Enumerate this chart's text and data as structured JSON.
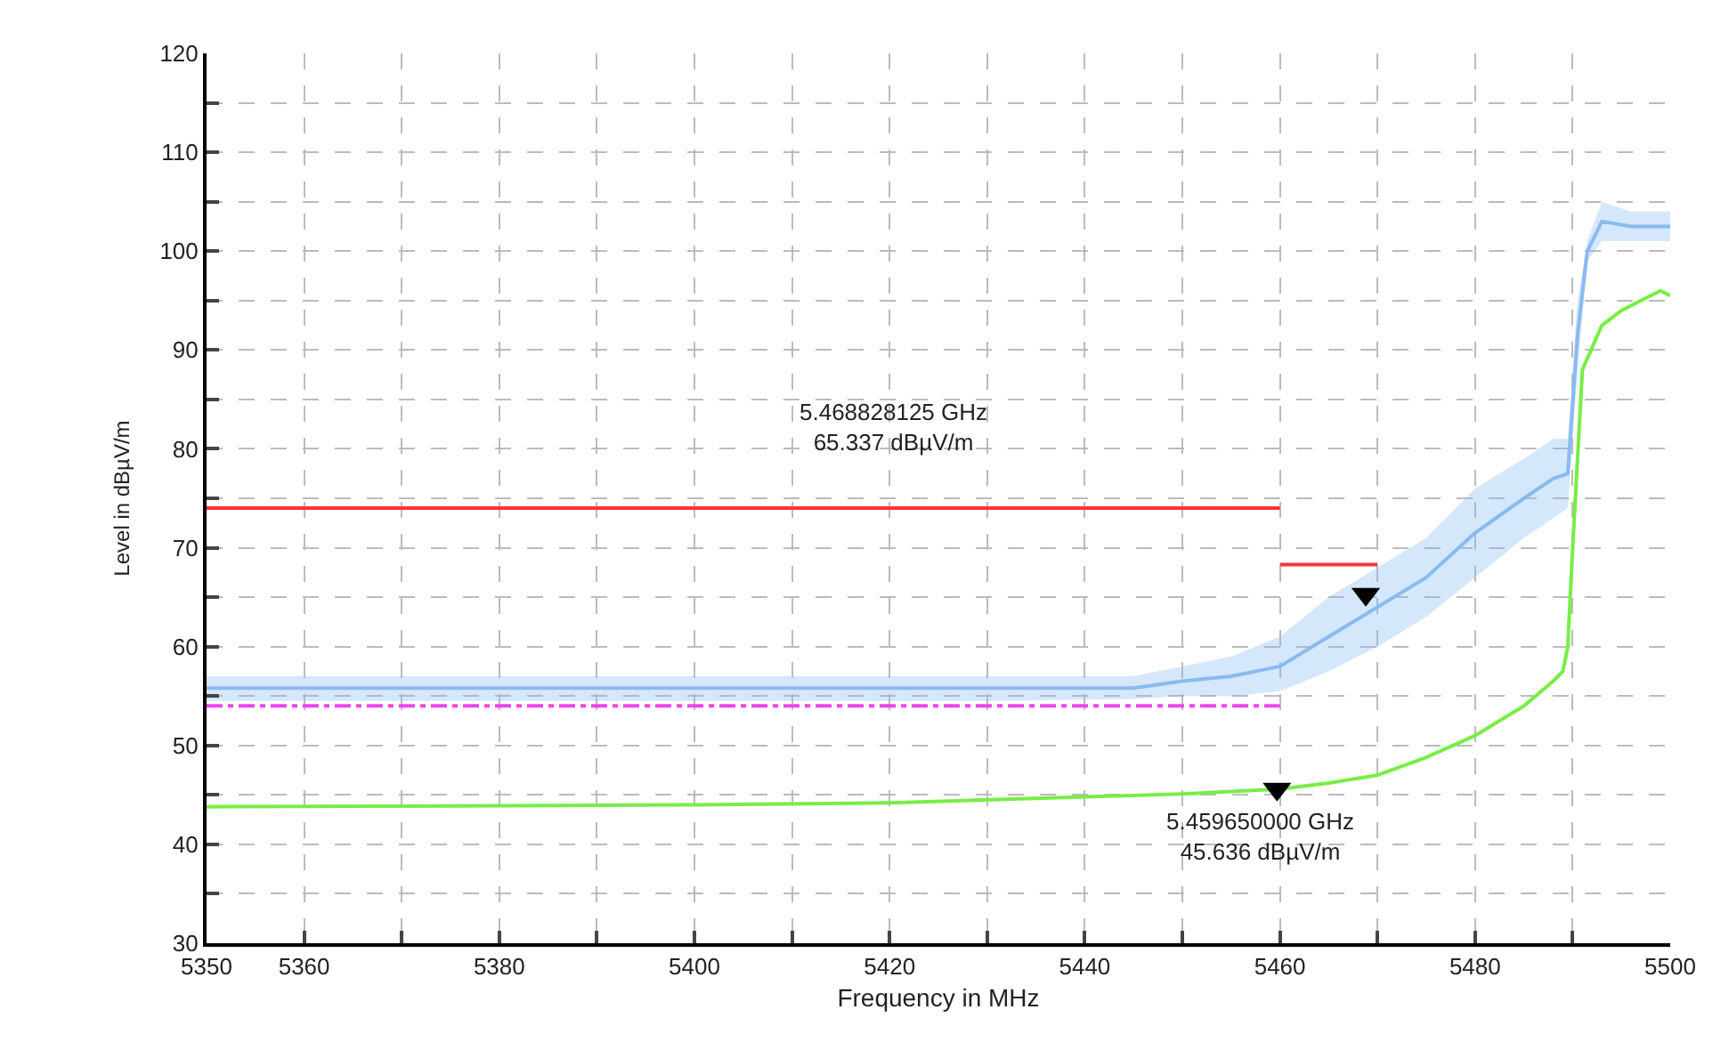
{
  "chart_data": {
    "type": "line",
    "xlabel": "Frequency in MHz",
    "ylabel": "Level in dBµV/m",
    "xlim": [
      5350,
      5500
    ],
    "ylim": [
      30,
      120
    ],
    "xticks": [
      5350,
      5360,
      {
        "value": 5370,
        "label": null
      },
      5380,
      {
        "value": 5390,
        "label": null
      },
      5400,
      {
        "value": 5410,
        "label": null
      },
      5420,
      {
        "value": 5430,
        "label": null
      },
      5440,
      {
        "value": 5450,
        "label": null
      },
      5460,
      {
        "value": 5470,
        "label": null
      },
      5480,
      {
        "value": 5490,
        "label": null
      },
      5500
    ],
    "yticks": [
      30,
      {
        "value": 35,
        "label": null
      },
      40,
      {
        "value": 45,
        "label": null
      },
      50,
      {
        "value": 55,
        "label": null
      },
      60,
      {
        "value": 65,
        "label": null
      },
      70,
      {
        "value": 75,
        "label": null
      },
      80,
      {
        "value": 85,
        "label": null
      },
      90,
      {
        "value": 95,
        "label": null
      },
      100,
      {
        "value": 105,
        "label": null
      },
      110,
      {
        "value": 115,
        "label": null
      },
      120
    ],
    "grid": true,
    "marker": "none",
    "line_style": "solid",
    "series": [
      {
        "color": "#ff3333",
        "x": [
          5350,
          5460
        ],
        "values": [
          74,
          74
        ]
      },
      {
        "color": "#ff3333",
        "x": [
          5460,
          5470
        ],
        "values": [
          68.3,
          68.3
        ]
      },
      {
        "color": "#88bbf0",
        "x": [
          5350,
          5370,
          5390,
          5410,
          5430,
          5445,
          5450,
          5455,
          5460,
          5465,
          5470,
          5475,
          5480,
          5485,
          5488,
          5489.5,
          5490.5,
          5491.5,
          5493,
          5496,
          5500
        ],
        "values": [
          55.8,
          55.8,
          55.8,
          55.8,
          55.8,
          55.8,
          56.5,
          57,
          58,
          61,
          64,
          67,
          71.5,
          75,
          77,
          77.5,
          91.5,
          100,
          103,
          102.5,
          102.5
        ],
        "lower": [
          54.5,
          54.5,
          54.5,
          54.5,
          54.5,
          54.7,
          55,
          55,
          55.5,
          57.5,
          60,
          63,
          67,
          71,
          73,
          74,
          88,
          99,
          101,
          101,
          101
        ],
        "upper": [
          57,
          57,
          57,
          57,
          57,
          57,
          58,
          59,
          61,
          65,
          68,
          71,
          76,
          79,
          81,
          81,
          95,
          101,
          105,
          104,
          104
        ]
      },
      {
        "color": "#ee44ee",
        "line_style": "dashed",
        "x": [
          5350,
          5460
        ],
        "values": [
          54,
          54
        ]
      },
      {
        "color": "#77ee44",
        "x": [
          5350,
          5380,
          5400,
          5420,
          5440,
          5450,
          5460,
          5465,
          5470,
          5475,
          5480,
          5485,
          5488,
          5489,
          5489.5,
          5490,
          5491,
          5493,
          5495,
          5497,
          5499,
          5500
        ],
        "values": [
          43.8,
          43.9,
          44,
          44.2,
          44.8,
          45.1,
          45.6,
          46.2,
          47,
          48.8,
          51,
          54,
          56.5,
          57.5,
          60,
          70,
          88,
          92.5,
          94,
          95,
          96,
          95.5
        ]
      },
      {
        "type": "scatter",
        "color": "#000000",
        "marker": "triangle",
        "x": [
          5468.8
        ],
        "values": [
          65.3
        ]
      },
      {
        "type": "scatter",
        "color": "#000000",
        "marker": "triangle",
        "x": [
          5459.7
        ],
        "values": [
          45.6
        ]
      }
    ],
    "annotations": [
      "5.468828125 GHz\n65.337 dBµV/m",
      "5.459650000 GHz\n45.636 dBµV/m"
    ]
  }
}
